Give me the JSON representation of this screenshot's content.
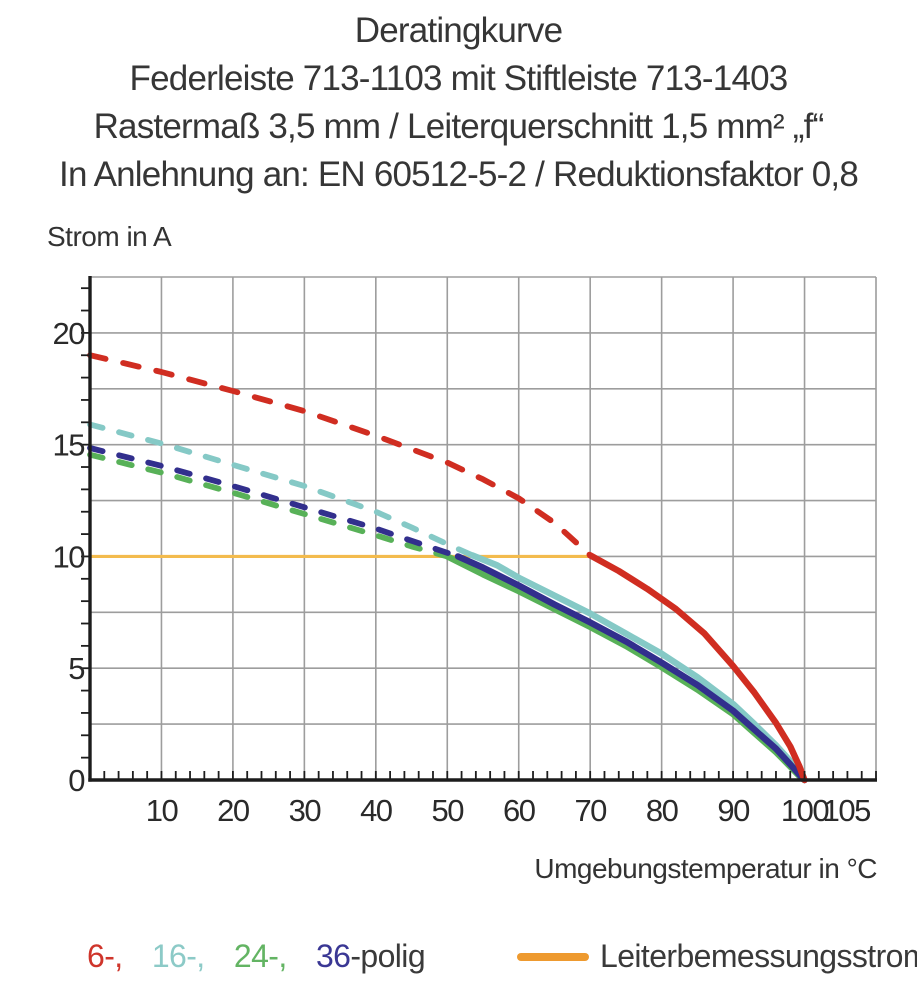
{
  "title": {
    "line1": "Deratingkurve",
    "line2": "Federleiste 713-1103 mit Stiftleiste 713-1403",
    "line3": "Rastermaß 3,5 mm / Leiterquerschnitt 1,5 mm² „f“",
    "line4": "In Anlehnung an: EN 60512-5-2 / Reduktionsfaktor 0,8"
  },
  "chart_data": {
    "type": "line",
    "title": "Deratingkurve",
    "xlabel": "Umgebungstemperatur in °C",
    "ylabel": "Strom in A",
    "grid": true,
    "legend_position": "bottom",
    "axes": {
      "x": {
        "min": 0,
        "max": 110,
        "grid_step": 10,
        "minor_tick_step": 2,
        "tick_labels": [
          10,
          20,
          30,
          40,
          50,
          60,
          70,
          80,
          90,
          100,
          105
        ]
      },
      "y": {
        "min": 0,
        "max": 22.5,
        "grid_step": 2.5,
        "minor_tick_step": 1,
        "tick_labels": [
          0,
          5,
          10,
          15,
          20
        ]
      }
    },
    "series": [
      {
        "name": "24-polig",
        "color": "#58b158",
        "dashed": [
          [
            0,
            14.55
          ],
          [
            10,
            13.75
          ],
          [
            20,
            12.85
          ],
          [
            30,
            11.9
          ],
          [
            40,
            10.95
          ],
          [
            45,
            10.45
          ],
          [
            50,
            10.0
          ]
        ],
        "solid": [
          [
            50,
            10.0
          ],
          [
            55,
            9.2
          ],
          [
            60,
            8.45
          ],
          [
            65,
            7.65
          ],
          [
            70,
            6.85
          ],
          [
            75,
            6.0
          ],
          [
            80,
            5.05
          ],
          [
            85,
            4.05
          ],
          [
            90,
            2.95
          ],
          [
            93,
            2.1
          ],
          [
            96,
            1.25
          ],
          [
            98,
            0.6
          ],
          [
            99.5,
            0.1
          ],
          [
            100,
            0
          ]
        ]
      },
      {
        "name": "16-polig",
        "color": "#85c9c6",
        "dashed": [
          [
            0,
            15.9
          ],
          [
            10,
            15.05
          ],
          [
            20,
            14.1
          ],
          [
            30,
            13.15
          ],
          [
            40,
            12.0
          ],
          [
            45,
            11.3
          ],
          [
            50,
            10.55
          ],
          [
            53.5,
            10.05
          ]
        ],
        "solid": [
          [
            53.5,
            10.05
          ],
          [
            57,
            9.6
          ],
          [
            60,
            9.05
          ],
          [
            65,
            8.25
          ],
          [
            70,
            7.45
          ],
          [
            75,
            6.55
          ],
          [
            80,
            5.65
          ],
          [
            85,
            4.6
          ],
          [
            90,
            3.4
          ],
          [
            93,
            2.5
          ],
          [
            96,
            1.55
          ],
          [
            98,
            0.85
          ],
          [
            99.5,
            0.2
          ],
          [
            100,
            0
          ]
        ]
      },
      {
        "name": "36-polig",
        "color": "#322f8d",
        "dashed": [
          [
            0,
            14.85
          ],
          [
            10,
            14.05
          ],
          [
            20,
            13.15
          ],
          [
            30,
            12.2
          ],
          [
            40,
            11.25
          ],
          [
            45,
            10.7
          ],
          [
            51.5,
            10.0
          ]
        ],
        "solid": [
          [
            51.5,
            10.0
          ],
          [
            55,
            9.5
          ],
          [
            60,
            8.7
          ],
          [
            65,
            7.85
          ],
          [
            70,
            7.05
          ],
          [
            75,
            6.2
          ],
          [
            80,
            5.25
          ],
          [
            85,
            4.25
          ],
          [
            90,
            3.1
          ],
          [
            93,
            2.25
          ],
          [
            96,
            1.4
          ],
          [
            98,
            0.7
          ],
          [
            99.5,
            0.15
          ],
          [
            100,
            0
          ]
        ]
      },
      {
        "name": "6-polig",
        "color": "#d02d21",
        "dashed": [
          [
            0,
            19.0
          ],
          [
            10,
            18.25
          ],
          [
            20,
            17.4
          ],
          [
            30,
            16.5
          ],
          [
            40,
            15.4
          ],
          [
            50,
            14.2
          ],
          [
            55,
            13.45
          ],
          [
            60,
            12.6
          ],
          [
            65,
            11.5
          ],
          [
            70,
            10.05
          ]
        ],
        "solid": [
          [
            70,
            10.05
          ],
          [
            74,
            9.35
          ],
          [
            78,
            8.55
          ],
          [
            82,
            7.65
          ],
          [
            86,
            6.55
          ],
          [
            90,
            5.1
          ],
          [
            93,
            3.9
          ],
          [
            96,
            2.55
          ],
          [
            98,
            1.5
          ],
          [
            99.3,
            0.6
          ],
          [
            100,
            0
          ]
        ]
      }
    ],
    "reference_line": {
      "label": "Leiterbemessungsstrom",
      "value": 10,
      "x_start": 0,
      "x_end": 70.8,
      "color_line": "#f3bb4d",
      "color_legend": "#ee9a2f"
    }
  },
  "legend": {
    "poles": [
      {
        "text": "6-,",
        "color": "#cf352b"
      },
      {
        "text": "16-,",
        "color": "#8ccac7"
      },
      {
        "text": "24-,",
        "color": "#63b463"
      },
      {
        "text": "36",
        "color": "#3a3794"
      }
    ],
    "suffix": "-polig",
    "reference_label": "Leiterbemessungsstrom"
  }
}
